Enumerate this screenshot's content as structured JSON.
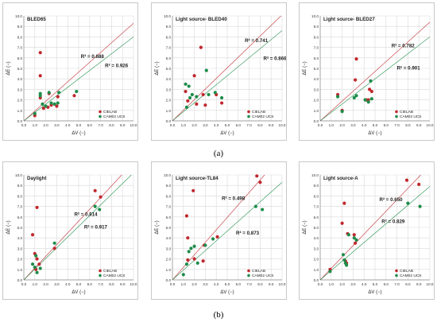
{
  "colors": {
    "cielab": "#c0282d",
    "cam02": "#1e8c4a",
    "grid": "#d9d9d9",
    "axis": "#000000"
  },
  "group_labels": {
    "a": "(a)",
    "b": "(b)"
  },
  "chart_data": [
    {
      "type": "scatter",
      "title": "BLED65",
      "xlabel": "ΔV (−)",
      "ylabel": "ΔE (−)",
      "xlim": [
        0,
        10
      ],
      "ylim": [
        0,
        10
      ],
      "xticks": [
        "0.0",
        "1.0",
        "2.0",
        "3.0",
        "4.0",
        "5.0",
        "6.0",
        "7.0",
        "8.0",
        "9.0",
        "10.0"
      ],
      "yticks": [
        "0.0",
        "1.0",
        "2.0",
        "3.0",
        "4.0",
        "5.0",
        "6.0",
        "7.0",
        "8.0",
        "9.0",
        "10.0"
      ],
      "r2": [
        {
          "text": "R² = 0.688",
          "series": "CIELAB"
        },
        {
          "text": "R² = 0.926",
          "series": "CAM02 UCS"
        }
      ],
      "legend_position": "bottom-right",
      "series": [
        {
          "name": "CIELAB",
          "points": [
            [
              1.0,
              0.5
            ],
            [
              1.5,
              6.5
            ],
            [
              1.5,
              4.3
            ],
            [
              1.5,
              2.2
            ],
            [
              1.8,
              1.2
            ],
            [
              2.2,
              1.3
            ],
            [
              2.3,
              2.6
            ],
            [
              2.5,
              1.5
            ],
            [
              3.0,
              1.4
            ],
            [
              3.1,
              2.3
            ],
            [
              4.6,
              2.4
            ]
          ],
          "fit": [
            [
              0,
              0
            ],
            [
              10,
              9.3
            ]
          ]
        },
        {
          "name": "CAM02 UCS",
          "points": [
            [
              1.0,
              0.7
            ],
            [
              1.5,
              2.4
            ],
            [
              1.5,
              2.6
            ],
            [
              1.7,
              1.6
            ],
            [
              2.0,
              1.4
            ],
            [
              2.3,
              2.7
            ],
            [
              2.5,
              1.7
            ],
            [
              3.1,
              1.7
            ],
            [
              3.2,
              2.7
            ],
            [
              4.8,
              2.8
            ],
            [
              2.8,
              1.6
            ]
          ],
          "fit": [
            [
              0,
              0
            ],
            [
              10,
              8.0
            ]
          ]
        }
      ]
    },
    {
      "type": "scatter",
      "title": "Light source- BLED40",
      "xlabel": "ΔV (−)",
      "ylabel": "ΔE (−)",
      "xlim": [
        0,
        10
      ],
      "ylim": [
        0,
        10
      ],
      "xticks": [
        "0.0",
        "1.0",
        "2.0",
        "3.0",
        "4.0",
        "5.0",
        "6.0",
        "7.0",
        "8.0",
        "9.0",
        "10.0"
      ],
      "yticks": [
        "0.0",
        "1.0",
        "2.0",
        "3.0",
        "4.0",
        "5.0",
        "6.0",
        "7.0",
        "8.0",
        "9.0",
        "10.0"
      ],
      "r2": [
        {
          "text": "R² = 0.741",
          "series": "CIELAB"
        },
        {
          "text": "R² = 0.866",
          "series": "CAM02 UCS"
        }
      ],
      "legend_position": "bottom-right",
      "series": [
        {
          "name": "CIELAB",
          "points": [
            [
              1.2,
              2.8
            ],
            [
              1.4,
              1.9
            ],
            [
              2.0,
              4.3
            ],
            [
              2.2,
              1.6
            ],
            [
              2.6,
              7.0
            ],
            [
              3.0,
              1.5
            ],
            [
              2.8,
              2.5
            ],
            [
              4.0,
              2.5
            ],
            [
              4.5,
              1.7
            ]
          ],
          "fit": [
            [
              0,
              0
            ],
            [
              10,
              10.1
            ]
          ]
        },
        {
          "name": "CAM02 UCS",
          "points": [
            [
              1.2,
              3.5
            ],
            [
              1.3,
              1.3
            ],
            [
              1.6,
              2.2
            ],
            [
              1.8,
              2.5
            ],
            [
              2.2,
              2.3
            ],
            [
              3.1,
              4.8
            ],
            [
              3.3,
              2.5
            ],
            [
              3.9,
              2.7
            ],
            [
              4.5,
              2.2
            ],
            [
              1.5,
              3.3
            ]
          ],
          "fit": [
            [
              0,
              0
            ],
            [
              10,
              8.6
            ]
          ]
        }
      ]
    },
    {
      "type": "scatter",
      "title": "Light source- BLED27",
      "xlabel": "ΔV (−)",
      "ylabel": "ΔE (−)",
      "xlim": [
        0,
        10
      ],
      "ylim": [
        0,
        10
      ],
      "xticks": [
        "0.0",
        "1.0",
        "2.0",
        "3.0",
        "4.0",
        "5.0",
        "6.0",
        "7.0",
        "8.0",
        "9.0",
        "10.0"
      ],
      "yticks": [
        "0.0",
        "1.0",
        "2.0",
        "3.0",
        "4.0",
        "5.0",
        "6.0",
        "7.0",
        "8.0",
        "9.0",
        "10.0"
      ],
      "r2": [
        {
          "text": "R² = 0.782",
          "series": "CIELAB"
        },
        {
          "text": "R² = 0.901",
          "series": "CAM02 UCS"
        }
      ],
      "legend_position": "bottom-right",
      "series": [
        {
          "name": "CIELAB",
          "points": [
            [
              1.6,
              2.5
            ],
            [
              2.0,
              1.0
            ],
            [
              3.2,
              3.9
            ],
            [
              3.3,
              5.9
            ],
            [
              4.2,
              2.0
            ],
            [
              4.4,
              2.0
            ],
            [
              4.5,
              3.0
            ],
            [
              4.7,
              2.8
            ]
          ],
          "fit": [
            [
              0,
              0
            ],
            [
              10,
              9.4
            ]
          ]
        },
        {
          "name": "CAM02 UCS",
          "points": [
            [
              1.6,
              2.3
            ],
            [
              2.0,
              0.9
            ],
            [
              3.1,
              2.2
            ],
            [
              3.3,
              2.4
            ],
            [
              4.1,
              2.0
            ],
            [
              4.4,
              1.8
            ],
            [
              4.6,
              3.8
            ],
            [
              4.7,
              2.1
            ]
          ],
          "fit": [
            [
              0,
              0
            ],
            [
              10,
              8.0
            ]
          ]
        }
      ]
    },
    {
      "type": "scatter",
      "title": "Daylight",
      "xlabel": "ΔV (−)",
      "ylabel": "ΔE (−)",
      "xlim": [
        0,
        10
      ],
      "ylim": [
        0,
        10
      ],
      "xticks": [
        "0.0",
        "1.0",
        "2.0",
        "3.0",
        "4.0",
        "5.0",
        "6.0",
        "7.0",
        "8.0",
        "9.0",
        "10.0"
      ],
      "yticks": [
        "0.0",
        "1.0",
        "2.0",
        "3.0",
        "4.0",
        "5.0",
        "6.0",
        "7.0",
        "8.0",
        "9.0",
        "10.0"
      ],
      "r2": [
        {
          "text": "R² = 0.614",
          "series": "CIELAB"
        },
        {
          "text": "R² = 0.917",
          "series": "CAM02 UCS"
        }
      ],
      "legend_position": "bottom-right",
      "series": [
        {
          "name": "CIELAB",
          "points": [
            [
              0.8,
              4.3
            ],
            [
              1.2,
              6.9
            ],
            [
              1.0,
              2.5
            ],
            [
              1.2,
              2.0
            ],
            [
              1.4,
              1.5
            ],
            [
              2.8,
              3.0
            ],
            [
              6.5,
              8.5
            ],
            [
              7.0,
              7.9
            ],
            [
              1.1,
              1.0
            ]
          ],
          "fit": [
            [
              0,
              0
            ],
            [
              10,
              11.2
            ]
          ]
        },
        {
          "name": "CAM02 UCS",
          "points": [
            [
              0.8,
              1.5
            ],
            [
              1.0,
              1.2
            ],
            [
              1.1,
              2.3
            ],
            [
              1.2,
              0.7
            ],
            [
              1.5,
              1.1
            ],
            [
              2.8,
              3.5
            ],
            [
              6.5,
              7.0
            ],
            [
              6.9,
              6.7
            ]
          ],
          "fit": [
            [
              0,
              0
            ],
            [
              10,
              10.2
            ]
          ]
        }
      ]
    },
    {
      "type": "scatter",
      "title": "Light source-TL84",
      "xlabel": "ΔV (−)",
      "ylabel": "ΔE (−)",
      "xlim": [
        0,
        10
      ],
      "ylim": [
        0,
        10
      ],
      "xticks": [
        "0.0",
        "1.0",
        "2.0",
        "3.0",
        "4.0",
        "5.0",
        "6.0",
        "7.0",
        "8.0",
        "9.0",
        "10.0"
      ],
      "yticks": [
        "0.0",
        "1.0",
        "2.0",
        "3.0",
        "4.0",
        "5.0",
        "6.0",
        "7.0",
        "8.0",
        "9.0",
        "10.0"
      ],
      "r2": [
        {
          "text": "R² = 0.498",
          "series": "CIELAB"
        },
        {
          "text": "R² = 0.873",
          "series": "CAM02 UCS"
        }
      ],
      "legend_position": "bottom-right",
      "series": [
        {
          "name": "CIELAB",
          "points": [
            [
              1.3,
              6.1
            ],
            [
              1.4,
              4.0
            ],
            [
              1.4,
              1.9
            ],
            [
              1.9,
              8.5
            ],
            [
              2.0,
              2.0
            ],
            [
              2.8,
              1.8
            ],
            [
              2.9,
              3.3
            ],
            [
              4.1,
              4.1
            ],
            [
              7.7,
              9.9
            ],
            [
              8.0,
              9.3
            ]
          ],
          "fit": [
            [
              0,
              0
            ],
            [
              10,
              11.9
            ]
          ]
        },
        {
          "name": "CAM02 UCS",
          "points": [
            [
              1.0,
              0.5
            ],
            [
              1.3,
              1.5
            ],
            [
              1.5,
              2.7
            ],
            [
              1.7,
              3.0
            ],
            [
              2.0,
              3.2
            ],
            [
              2.3,
              1.6
            ],
            [
              3.0,
              3.3
            ],
            [
              3.7,
              3.9
            ],
            [
              7.6,
              7.0
            ],
            [
              8.2,
              6.7
            ]
          ],
          "fit": [
            [
              0,
              0
            ],
            [
              10,
              9.3
            ]
          ]
        }
      ]
    },
    {
      "type": "scatter",
      "title": "Light source-A",
      "xlabel": "ΔV (−)",
      "ylabel": "ΔE (−)",
      "xlim": [
        0,
        10
      ],
      "ylim": [
        0,
        10
      ],
      "xticks": [
        "0.0",
        "1.0",
        "2.0",
        "3.0",
        "4.0",
        "5.0",
        "6.0",
        "7.0",
        "8.0",
        "9.0",
        "10.0"
      ],
      "yticks": [
        "0.0",
        "1.0",
        "2.0",
        "3.0",
        "4.0",
        "5.0",
        "6.0",
        "7.0",
        "8.0",
        "9.0",
        "10.0"
      ],
      "r2": [
        {
          "text": "R² = 0.650",
          "series": "CIELAB"
        },
        {
          "text": "R² = 0.829",
          "series": "CAM02 UCS"
        }
      ],
      "legend_position": "bottom-right",
      "series": [
        {
          "name": "CIELAB",
          "points": [
            [
              0.9,
              1.0
            ],
            [
              2.0,
              5.4
            ],
            [
              2.2,
              7.3
            ],
            [
              2.3,
              1.8
            ],
            [
              2.5,
              4.4
            ],
            [
              3.1,
              4.3
            ],
            [
              3.2,
              3.5
            ],
            [
              7.9,
              9.5
            ],
            [
              9.0,
              9.1
            ],
            [
              2.4,
              1.6
            ]
          ],
          "fit": [
            [
              0,
              0
            ],
            [
              10,
              10.9
            ]
          ]
        },
        {
          "name": "CAM02 UCS",
          "points": [
            [
              0.9,
              0.8
            ],
            [
              2.1,
              2.4
            ],
            [
              2.3,
              1.6
            ],
            [
              2.4,
              1.4
            ],
            [
              2.6,
              4.3
            ],
            [
              3.1,
              4.0
            ],
            [
              3.3,
              3.8
            ],
            [
              8.0,
              7.3
            ],
            [
              9.1,
              7.0
            ],
            [
              2.2,
              1.9
            ]
          ],
          "fit": [
            [
              0,
              0
            ],
            [
              10,
              8.9
            ]
          ]
        }
      ]
    }
  ]
}
